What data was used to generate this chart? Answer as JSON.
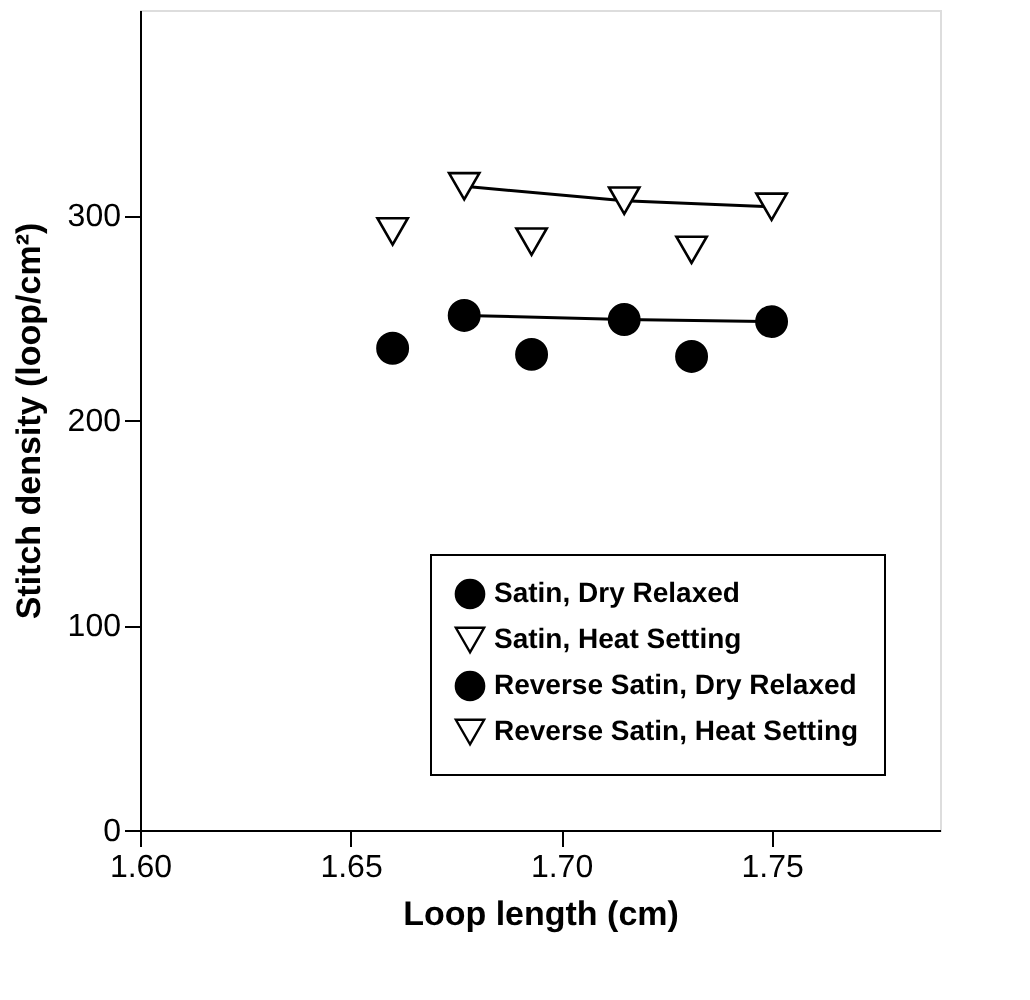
{
  "chart_data": {
    "type": "line",
    "xlabel": "Loop length (cm)",
    "ylabel": "Stitch density (loop/cm²)",
    "xlim": [
      1.6,
      1.79
    ],
    "xticks": [
      {
        "value": 1.6,
        "label": "1.60"
      },
      {
        "value": 1.65,
        "label": "1.65"
      },
      {
        "value": 1.7,
        "label": "1.70"
      },
      {
        "value": 1.75,
        "label": "1.75"
      }
    ],
    "ylim": [
      0,
      400
    ],
    "yticks": [
      0,
      100,
      200,
      300
    ],
    "grid": false,
    "legend": "bottom right",
    "series": [
      {
        "name": "Satin, Dry Relaxed",
        "marker": "circle",
        "color": "#000000",
        "x": [
          1.677,
          1.715,
          1.75
        ],
        "values": [
          251,
          249,
          248
        ]
      },
      {
        "name": "Satin, Heat Setting",
        "marker": "triangle",
        "color": "#000000",
        "x": [
          1.677,
          1.715,
          1.75
        ],
        "values": [
          314,
          307,
          304
        ]
      },
      {
        "name": "Reverse Satin, Dry Relaxed",
        "type": "scatter",
        "marker": "circle",
        "color": "#000000",
        "x": [
          1.66,
          1.693,
          1.731
        ],
        "values": [
          235,
          232,
          231
        ]
      },
      {
        "name": "Reverse Satin, Heat Setting",
        "type": "scatter",
        "marker": "triangle",
        "color": "#000000",
        "x": [
          1.66,
          1.693,
          1.731
        ],
        "values": [
          292,
          287,
          283
        ]
      }
    ]
  }
}
